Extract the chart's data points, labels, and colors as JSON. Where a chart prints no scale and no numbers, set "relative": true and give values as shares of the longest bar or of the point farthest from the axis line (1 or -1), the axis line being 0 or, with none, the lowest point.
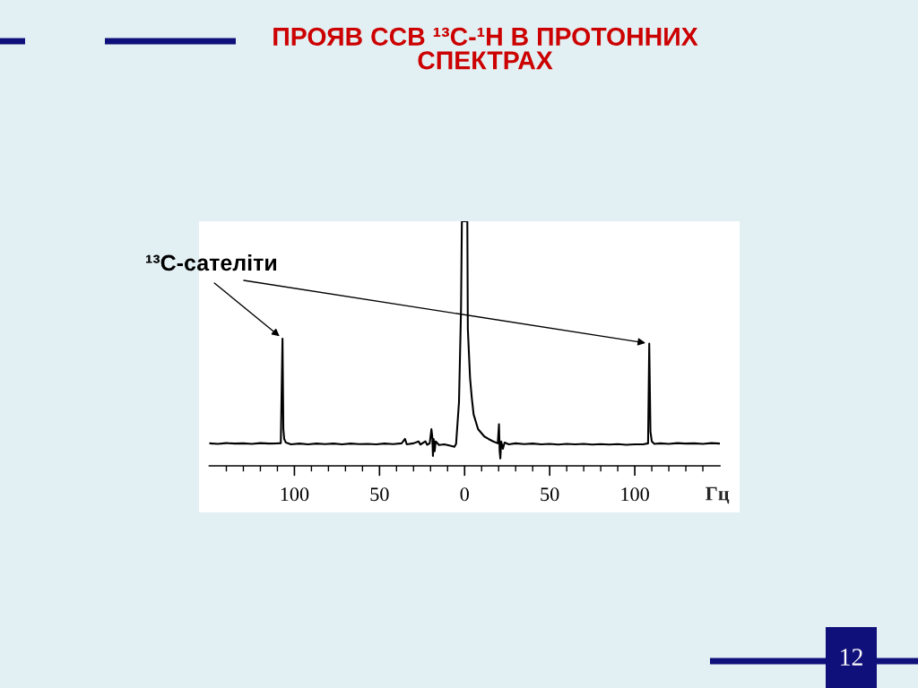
{
  "chart_data": {
    "type": "line",
    "title": "ПРОЯВ ССВ ¹³C-¹H В ПРОТОННИХ\nСПЕКТРАХ",
    "xlabel": "Гц",
    "relative": true,
    "xlim": [
      -150,
      150
    ],
    "xticks": [
      {
        "value": -140,
        "label": null
      },
      {
        "value": -130,
        "label": null
      },
      {
        "value": -120,
        "label": null
      },
      {
        "value": -110,
        "label": null
      },
      {
        "value": -100,
        "label": "100"
      },
      {
        "value": -90,
        "label": null
      },
      {
        "value": -80,
        "label": null
      },
      {
        "value": -70,
        "label": null
      },
      {
        "value": -60,
        "label": null
      },
      {
        "value": -50,
        "label": "50"
      },
      {
        "value": -40,
        "label": null
      },
      {
        "value": -30,
        "label": null
      },
      {
        "value": -20,
        "label": null
      },
      {
        "value": -10,
        "label": null
      },
      0,
      {
        "value": 10,
        "label": null
      },
      {
        "value": 20,
        "label": null
      },
      {
        "value": 30,
        "label": null
      },
      {
        "value": 40,
        "label": null
      },
      50,
      {
        "value": 60,
        "label": null
      },
      {
        "value": 70,
        "label": null
      },
      {
        "value": 80,
        "label": null
      },
      {
        "value": 90,
        "label": null
      },
      100,
      {
        "value": 110,
        "label": null
      },
      {
        "value": 120,
        "label": null
      },
      {
        "value": 130,
        "label": null
      },
      {
        "value": 140,
        "label": null
      }
    ],
    "x": [
      -150,
      -145,
      -140,
      -135,
      -130,
      -125,
      -120,
      -115,
      -110,
      -108,
      -107,
      -106.5,
      -106,
      -105,
      -102,
      -97,
      -92,
      -87,
      -82,
      -77,
      -72,
      -67,
      -62,
      -57,
      -52,
      -47,
      -42,
      -37,
      -35,
      -34,
      -30,
      -27,
      -26,
      -23,
      -22,
      -20.5,
      -19.5,
      -19,
      -18.6,
      -18.2,
      -17.6,
      -17,
      -15,
      -12,
      -9,
      -6,
      -5,
      -4.5,
      -3.3,
      -2.1,
      -1.6,
      1.6,
      1.9,
      3.2,
      4.2,
      5.3,
      7.9,
      11.6,
      14,
      16.8,
      19.5,
      20.2,
      20.6,
      21,
      21.5,
      22.5,
      23.5,
      26,
      30,
      35,
      40,
      45,
      50,
      55,
      60,
      65,
      70,
      75,
      80,
      85,
      90,
      95,
      100,
      105,
      107.8,
      108.5,
      109.2,
      110,
      111.5,
      115,
      120,
      125,
      130,
      135,
      140,
      145,
      150
    ],
    "series": [
      {
        "color": "#000000",
        "values": [
          0.092,
          0.09,
          0.093,
          0.091,
          0.092,
          0.09,
          0.093,
          0.091,
          0.092,
          0.093,
          0.52,
          0.15,
          0.11,
          0.095,
          0.088,
          0.091,
          0.088,
          0.091,
          0.089,
          0.091,
          0.088,
          0.091,
          0.089,
          0.09,
          0.088,
          0.091,
          0.089,
          0.092,
          0.11,
          0.088,
          0.092,
          0.1,
          0.087,
          0.1,
          0.086,
          0.092,
          0.15,
          0.12,
          0.04,
          0.11,
          0.06,
          0.1,
          0.085,
          0.088,
          0.083,
          0.078,
          0.09,
          0.14,
          0.26,
          0.64,
          1.0,
          1.0,
          0.56,
          0.36,
          0.28,
          0.21,
          0.15,
          0.12,
          0.11,
          0.1,
          0.092,
          0.17,
          0.06,
          0.03,
          0.1,
          0.07,
          0.095,
          0.088,
          0.092,
          0.089,
          0.091,
          0.088,
          0.09,
          0.087,
          0.09,
          0.088,
          0.09,
          0.087,
          0.089,
          0.087,
          0.089,
          0.086,
          0.088,
          0.088,
          0.092,
          0.5,
          0.14,
          0.1,
          0.09,
          0.092,
          0.09,
          0.093,
          0.091,
          0.092,
          0.09,
          0.093,
          0.091
        ]
      }
    ],
    "annotations": [
      {
        "text": "¹³C-сателіти",
        "x": -107,
        "y": 0.52
      },
      "12"
    ]
  }
}
